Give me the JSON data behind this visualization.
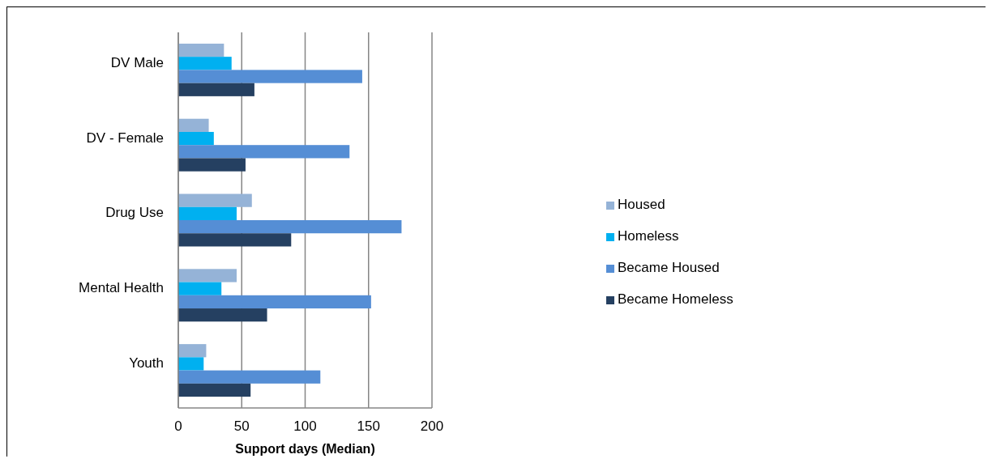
{
  "chart_data": {
    "type": "bar",
    "orientation": "horizontal",
    "xlabel": "Support days (Median)",
    "categories": [
      "DV Male",
      "DV - Female",
      "Drug Use",
      "Mental Health",
      "Youth"
    ],
    "series": [
      {
        "name": "Housed",
        "color": "#95b3d7",
        "values": [
          36,
          24,
          58,
          46,
          22
        ]
      },
      {
        "name": "Homeless",
        "color": "#00b0f0",
        "values": [
          42,
          28,
          46,
          34,
          20
        ]
      },
      {
        "name": "Became Housed",
        "color": "#558ed5",
        "values": [
          145,
          135,
          176,
          152,
          112
        ]
      },
      {
        "name": "Became Homeless",
        "color": "#254061",
        "values": [
          60,
          53,
          89,
          70,
          57
        ]
      }
    ],
    "xlim": [
      0,
      200
    ],
    "xticks": [
      0,
      50,
      100,
      150,
      200
    ],
    "grid": "x",
    "legend": "right"
  }
}
